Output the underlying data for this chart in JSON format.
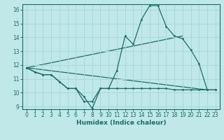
{
  "xlabel": "Humidex (Indice chaleur)",
  "bg_color": "#c0e8e8",
  "line_color": "#1a6b6b",
  "grid_color": "#a8d8d8",
  "xlim": [
    -0.5,
    23.5
  ],
  "ylim": [
    8.8,
    16.4
  ],
  "xticks": [
    0,
    1,
    2,
    3,
    4,
    5,
    6,
    7,
    8,
    9,
    10,
    11,
    12,
    13,
    14,
    15,
    16,
    17,
    18,
    19,
    20,
    21,
    22,
    23
  ],
  "yticks": [
    9,
    10,
    11,
    12,
    13,
    14,
    15,
    16
  ],
  "series1_x": [
    0,
    1,
    2,
    3,
    4,
    5,
    6,
    7,
    8,
    9,
    10,
    11,
    12,
    13,
    14,
    15,
    16,
    17,
    18,
    19,
    20,
    21,
    22,
    23
  ],
  "series1_y": [
    11.8,
    11.5,
    11.3,
    11.3,
    10.8,
    10.3,
    10.3,
    9.7,
    8.85,
    10.3,
    10.3,
    11.6,
    14.1,
    13.5,
    15.3,
    16.3,
    16.3,
    14.8,
    14.1,
    13.9,
    13.1,
    12.1,
    10.2,
    10.2
  ],
  "series2_x": [
    0,
    1,
    2,
    3,
    4,
    5,
    6,
    7,
    8,
    9,
    10,
    11,
    12,
    13,
    14,
    15,
    16,
    17,
    18,
    19,
    20,
    21,
    22,
    23
  ],
  "series2_y": [
    11.8,
    11.5,
    11.3,
    11.3,
    10.8,
    10.3,
    10.3,
    9.35,
    9.35,
    10.3,
    10.3,
    10.3,
    10.3,
    10.3,
    10.3,
    10.3,
    10.3,
    10.3,
    10.2,
    10.2,
    10.2,
    10.2,
    10.2,
    10.2
  ],
  "series3_x": [
    0,
    19
  ],
  "series3_y": [
    11.8,
    14.1
  ],
  "series4_x": [
    0,
    22
  ],
  "series4_y": [
    11.8,
    10.2
  ]
}
